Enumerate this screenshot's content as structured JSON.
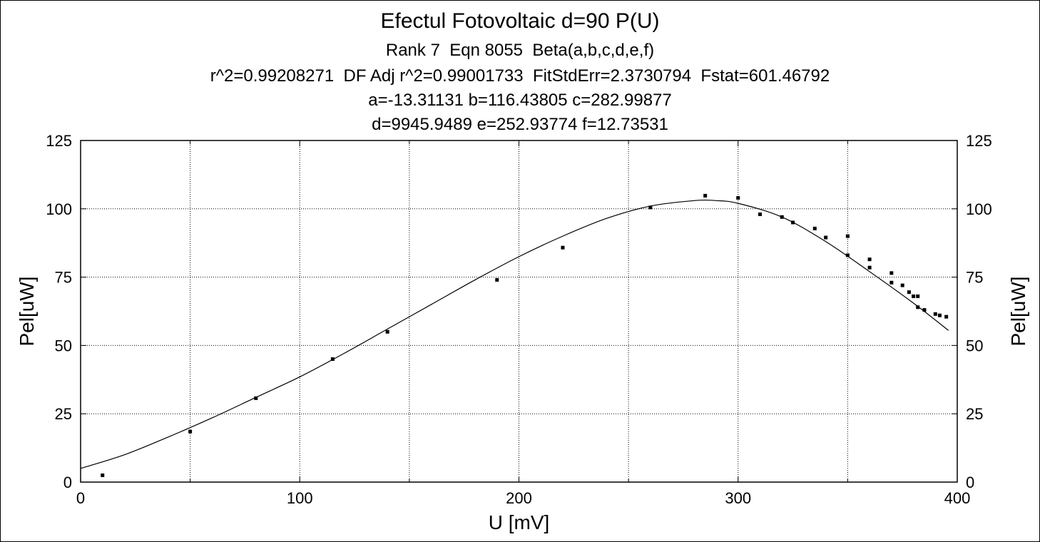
{
  "chart_data": {
    "type": "scatter",
    "title": "Efectul Fotovoltaic d=90 P(U)",
    "subtitle_lines": [
      "Rank 7  Eqn 8055  Beta(a,b,c,d,e,f)",
      "r^2=0.99208271  DF Adj r^2=0.99001733  FitStdErr=2.3730794  Fstat=601.46792",
      "a=-13.31131 b=116.43805 c=282.99877",
      "d=9945.9489 e=252.93774 f=12.73531"
    ],
    "xlabel": "U [mV]",
    "ylabel": "Pel[uW]",
    "ylabel_right": "Pel[uW]",
    "xlim": [
      0,
      400
    ],
    "ylim": [
      0,
      125
    ],
    "x_ticks": [
      0,
      100,
      200,
      300,
      400
    ],
    "y_ticks": [
      0,
      25,
      50,
      75,
      100,
      125
    ],
    "grid": true,
    "series": [
      {
        "type": "scatter",
        "x": [
          10,
          50,
          80,
          115,
          140,
          190,
          220,
          260,
          285,
          300,
          310,
          320,
          325,
          335,
          340,
          350,
          350,
          360,
          360,
          370,
          370,
          375,
          378,
          380,
          382,
          382,
          385,
          390,
          392,
          395
        ],
        "y": [
          2.5,
          18.5,
          30.7,
          45,
          55,
          74,
          85.8,
          100.5,
          104.8,
          104,
          98,
          97,
          95,
          92.8,
          89.5,
          90,
          83,
          81.5,
          78.5,
          76.5,
          73,
          72,
          69.5,
          68,
          68,
          64,
          63,
          61.5,
          61,
          60.5
        ]
      },
      {
        "type": "line",
        "fit": {
          "a": -13.31131,
          "b": 116.43805,
          "c": 282.99877,
          "d": 9945.9489,
          "e": 252.93774,
          "f": 12.73531
        },
        "x": [
          0,
          20,
          40,
          60,
          80,
          100,
          120,
          140,
          160,
          180,
          200,
          220,
          240,
          260,
          280,
          290,
          300,
          320,
          340,
          360,
          380,
          396
        ],
        "y": [
          5,
          10,
          16.5,
          23.5,
          31,
          38.5,
          47,
          56,
          65,
          74,
          82.5,
          90,
          96.5,
          101,
          103,
          103,
          102,
          97,
          88,
          77,
          65.5,
          55.5
        ]
      }
    ]
  }
}
